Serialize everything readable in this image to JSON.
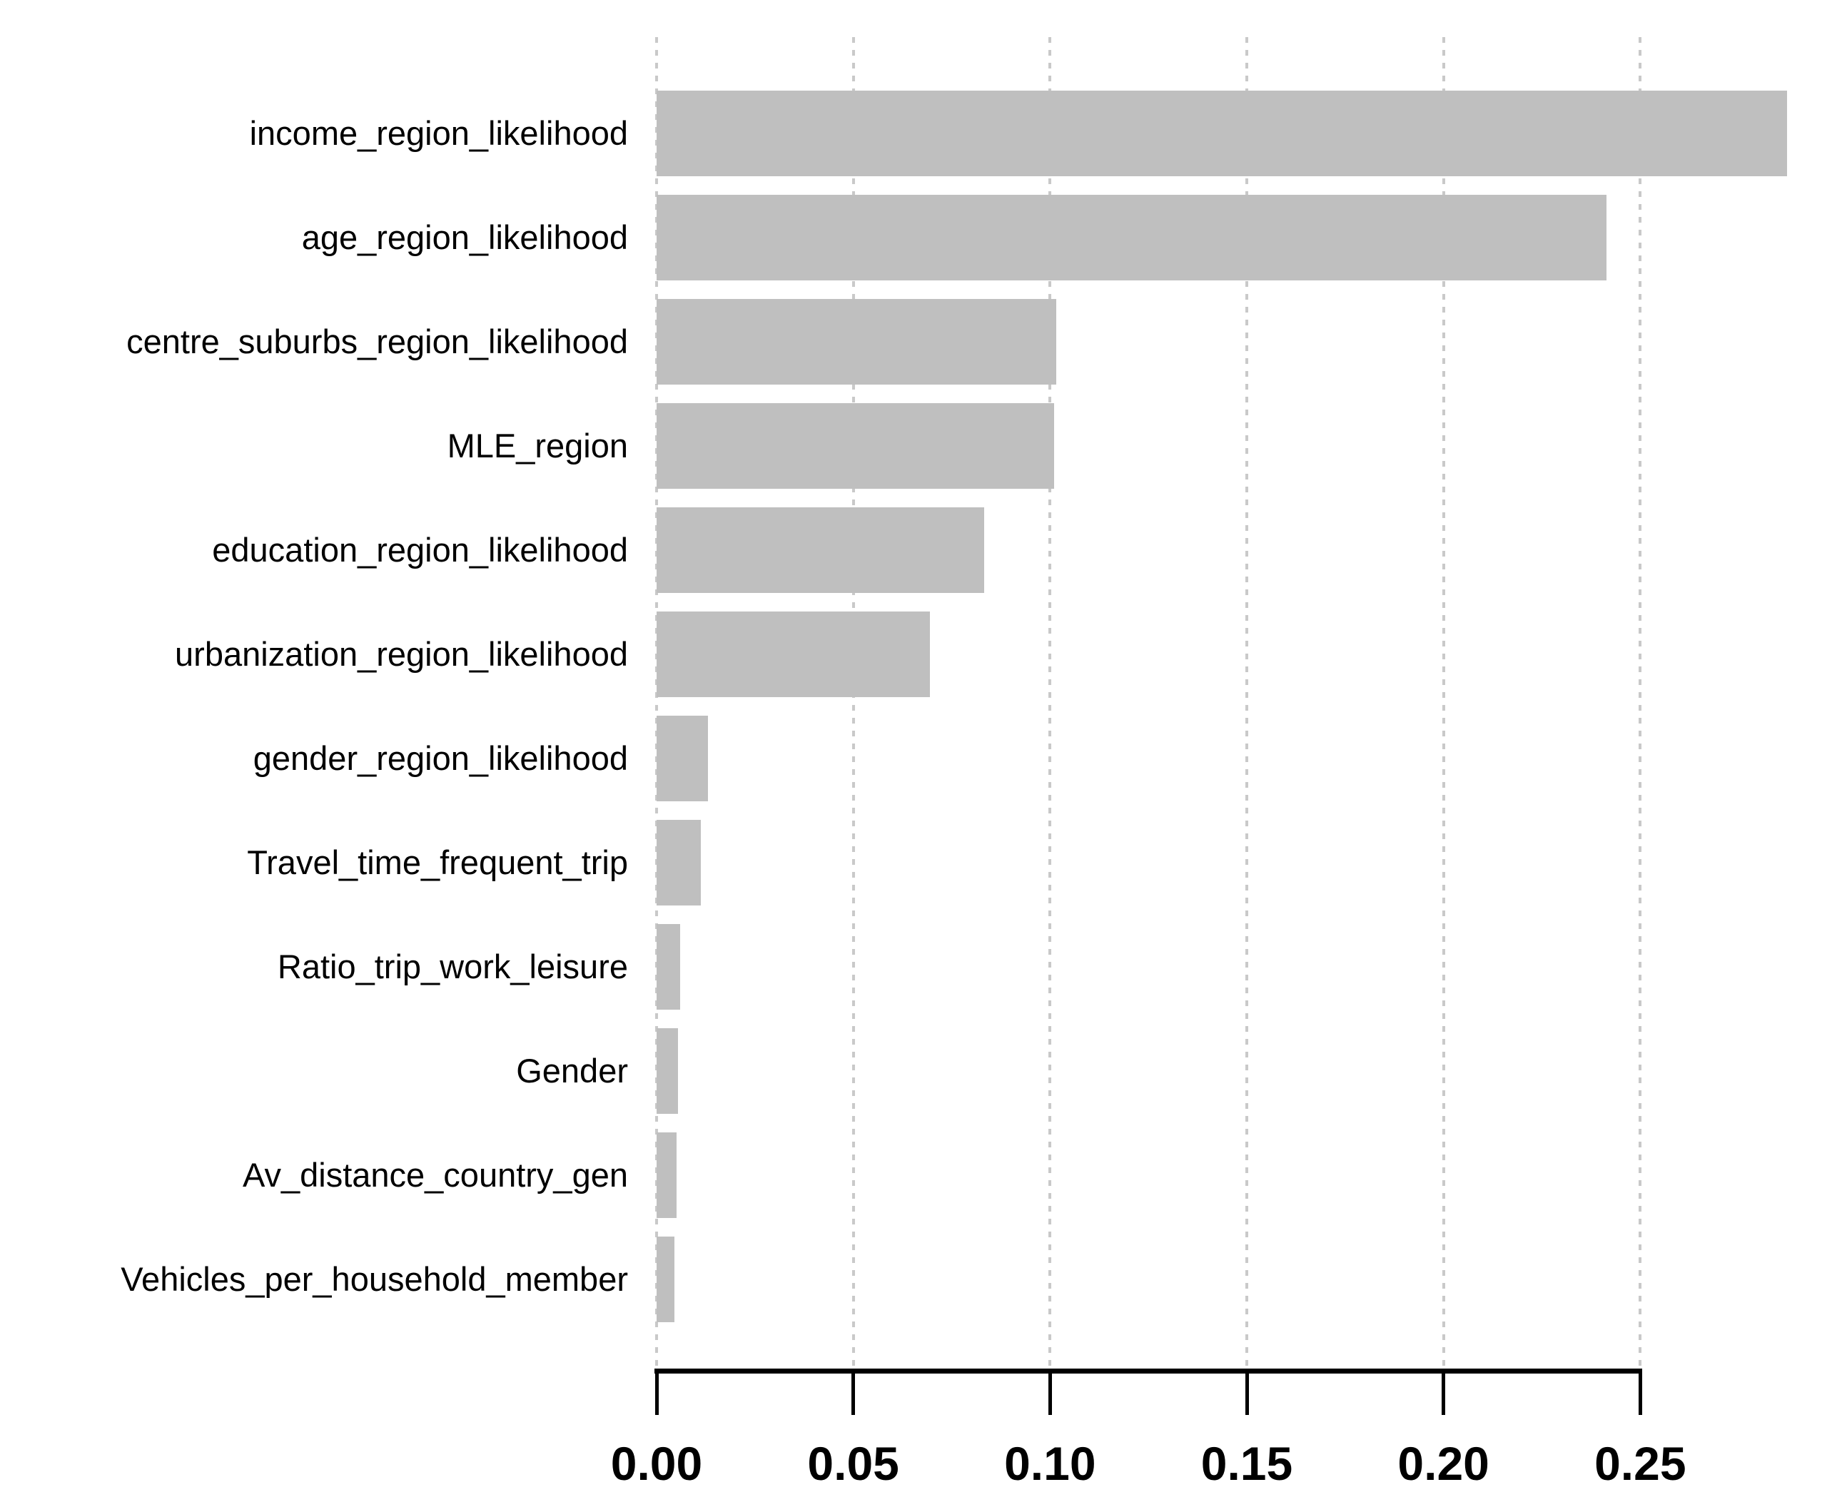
{
  "figure": {
    "background": "#ffffff"
  },
  "chart_data": {
    "type": "bar",
    "orientation": "horizontal",
    "title": "",
    "xlabel": "",
    "ylabel": "",
    "legend": "none",
    "grid": "vertical-dashed",
    "categories": [
      "income_region_likelihood",
      "age_region_likelihood",
      "centre_suburbs_region_likelihood",
      "MLE_region",
      "education_region_likelihood",
      "urbanization_region_likelihood",
      "gender_region_likelihood",
      "Travel_time_frequent_trip",
      "Ratio_trip_work_leisure",
      "Gender",
      "Av_distance_country_gen",
      "Vehicles_per_household_member"
    ],
    "values": [
      0.2873,
      0.2415,
      0.1016,
      0.101,
      0.0833,
      0.0695,
      0.0131,
      0.0112,
      0.006,
      0.0054,
      0.0051,
      0.0046
    ],
    "x_ticks": [
      {
        "value": 0.0,
        "label": "0.00"
      },
      {
        "value": 0.05,
        "label": "0.05"
      },
      {
        "value": 0.1,
        "label": "0.10"
      },
      {
        "value": 0.15,
        "label": "0.15"
      },
      {
        "value": 0.2,
        "label": "0.20"
      },
      {
        "value": 0.25,
        "label": "0.25"
      }
    ],
    "xlim": [
      0,
      0.3
    ],
    "bar_color": "#bfbfbf",
    "gridline_color": "#c9c9c9",
    "axis_color": "#000000",
    "text_color": "#000000"
  }
}
